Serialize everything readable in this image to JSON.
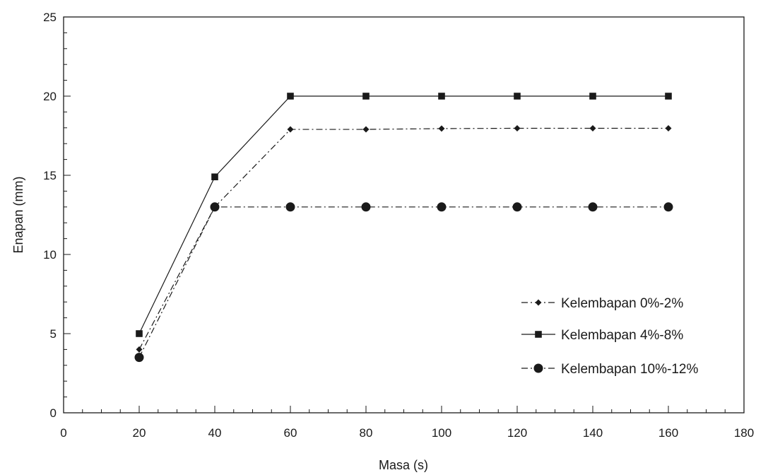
{
  "chart_data": {
    "type": "line",
    "xlabel": "Masa (s)",
    "ylabel": "Enapan (mm)",
    "xlim": [
      0,
      180
    ],
    "ylim": [
      0,
      25
    ],
    "x_ticks": [
      "0",
      "20",
      "40",
      "60",
      "80",
      "100",
      "120",
      "140",
      "160",
      "180"
    ],
    "y_ticks": [
      "0",
      "5",
      "10",
      "15",
      "20",
      "25"
    ],
    "grid": false,
    "legend_position": "bottom-right",
    "x": [
      20,
      40,
      60,
      80,
      100,
      120,
      140,
      160
    ],
    "series": [
      {
        "name": "Kelembapan 0%-2%",
        "marker": "diamond",
        "line_style": "dash-dot",
        "values": [
          4.0,
          13.0,
          17.9,
          17.9,
          17.95,
          17.97,
          17.97,
          17.97
        ]
      },
      {
        "name": "Kelembapan 4%-8%",
        "marker": "square",
        "line_style": "solid",
        "values": [
          5.0,
          14.9,
          20.0,
          20.0,
          20.0,
          20.0,
          20.0,
          20.0
        ]
      },
      {
        "name": "Kelembapan 10%-12%",
        "marker": "circle",
        "line_style": "dash-dot",
        "values": [
          3.5,
          13.0,
          13.0,
          13.0,
          13.0,
          13.0,
          13.0,
          13.0
        ]
      }
    ]
  }
}
